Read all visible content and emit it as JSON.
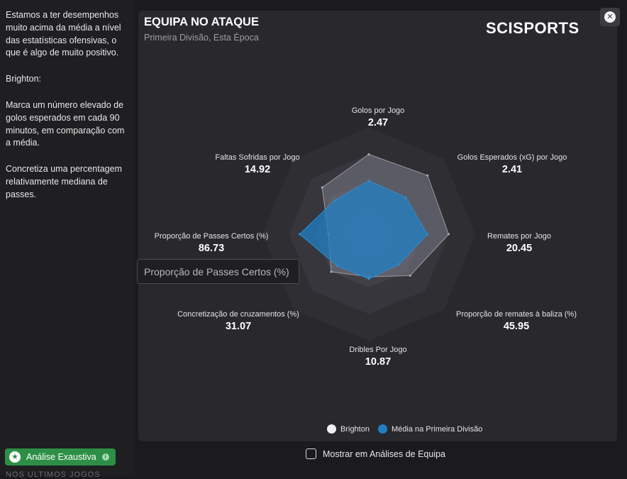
{
  "sidebar": {
    "paragraphs": [
      "Estamos a ter desempenhos muito acima da média a nível das estatísticas ofensivas, o que é algo de muito positivo.",
      "Brighton:",
      "Marca um número elevado de golos esperados em cada 90 minutos, em comparação com a média.",
      "Concretiza uma percentagem relativamente mediana de passes."
    ],
    "badge_label": "Análise Exaustiva",
    "cut_text": "NOS ULTIMOS JOGOS"
  },
  "panel": {
    "title": "EQUIPA NO ATAQUE",
    "subtitle": "Primeira Divisão, Esta Época",
    "logo": "SCISPORTS",
    "close_icon": "close-icon"
  },
  "radar": {
    "metrics": [
      {
        "label": "Golos por Jogo",
        "value": "2.47"
      },
      {
        "label": "Golos Esperados (xG) por Jogo",
        "value": "2.41"
      },
      {
        "label": "Remates por Jogo",
        "value": "20.45"
      },
      {
        "label": "Proporção de remates à baliza (%)",
        "value": "45.95"
      },
      {
        "label": "Dribles Por Jogo",
        "value": "10.87"
      },
      {
        "label": "Concretização de cruzamentos (%)",
        "value": "31.07"
      },
      {
        "label": "Proporção de Passes Certos (%)",
        "value": "86.73"
      },
      {
        "label": "Faltas Sofridas por Jogo",
        "value": "14.92"
      }
    ],
    "tooltip": "Proporção de Passes Certos (%)",
    "levels": 4
  },
  "chart_data": {
    "type": "radar",
    "axes": [
      "Golos por Jogo",
      "Golos Esperados (xG) por Jogo",
      "Remates por Jogo",
      "Proporção de remates à baliza (%)",
      "Dribles Por Jogo",
      "Concretização de cruzamentos (%)",
      "Proporção de Passes Certos (%)",
      "Faltas Sofridas por Jogo"
    ],
    "series": [
      {
        "name": "Brighton",
        "values": [
          0.75,
          0.78,
          0.75,
          0.55,
          0.4,
          0.5,
          0.38,
          0.62
        ],
        "color": "#7a7a86"
      },
      {
        "name": "Média na Primeira Divisão",
        "values": [
          0.5,
          0.49,
          0.55,
          0.4,
          0.42,
          0.42,
          0.65,
          0.45
        ],
        "color": "#1f7fc4"
      }
    ],
    "value_range": [
      0,
      1
    ]
  },
  "legend": {
    "items": [
      {
        "label": "Brighton",
        "color": "#f0f0f0"
      },
      {
        "label": "Média na Primeira Divisão",
        "color": "#1f7fc4"
      }
    ]
  },
  "footer": {
    "checkbox_label": "Mostrar em Análises de Equipa"
  }
}
